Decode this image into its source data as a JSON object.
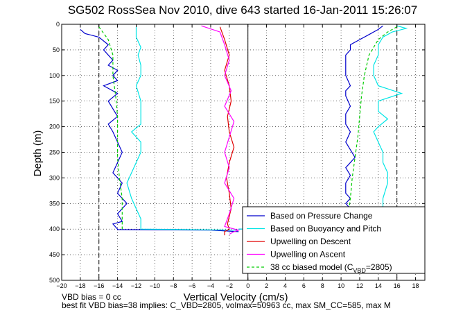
{
  "chart_data": {
    "type": "line",
    "title": "SG502 RossSea Nov 2010, dive 643 started 16-Jan-2011 15:26:07",
    "xlabel": "Vertical Velocity (cm/s)",
    "ylabel": "Depth (m)",
    "xlim": [
      -20,
      19
    ],
    "ylim": [
      0,
      500
    ],
    "y_reversed": true,
    "grid": true,
    "legend_position": "bottom-right",
    "xticks": [
      -20,
      -18,
      -16,
      -14,
      -12,
      -10,
      -8,
      -6,
      -4,
      -2,
      0,
      2,
      4,
      6,
      8,
      10,
      12,
      14,
      16,
      18
    ],
    "yticks": [
      0,
      50,
      100,
      150,
      200,
      250,
      300,
      350,
      400,
      450,
      500
    ],
    "reference_lines": {
      "solid_x": [
        0
      ],
      "dashed_x": [
        -16,
        16
      ],
      "colors": {
        "solid": "#000000",
        "dashed": "#000000"
      }
    },
    "series": [
      {
        "name": "Based on Pressure Change",
        "color": "#0000cc",
        "style": "solid",
        "segments": [
          {
            "x": [
              -18,
              -17.5,
              -16,
              -15,
              -15.5,
              -15,
              -14.5,
              -15,
              -14,
              -14.5,
              -14,
              -15.5,
              -14,
              -15,
              -14.5,
              -14,
              -15,
              -14.5,
              -14,
              -13.5,
              -14,
              -14.5,
              -13.5,
              -14,
              -13,
              -14,
              -13.5,
              -14.5,
              -14,
              -14,
              -4,
              -1
            ],
            "y": [
              10,
              18,
              25,
              40,
              50,
              60,
              70,
              80,
              90,
              100,
              110,
              120,
              135,
              150,
              165,
              180,
              195,
              210,
              230,
              250,
              270,
              290,
              310,
              330,
              350,
              370,
              385,
              390,
              400,
              401,
              402,
              405
            ]
          },
          {
            "x": [
              -1,
              10,
              10.5,
              11,
              10.5,
              11,
              10.5,
              10.5,
              11,
              10.5,
              11,
              11.5,
              11,
              10.5,
              11,
              10.5,
              10.5,
              11,
              10.5,
              10.5,
              11,
              10.5,
              10.5,
              10.5,
              11,
              11,
              12,
              13,
              14,
              14.5
            ],
            "y": [
              400,
              395,
              380,
              360,
              350,
              340,
              330,
              310,
              295,
              280,
              270,
              260,
              245,
              230,
              210,
              195,
              175,
              160,
              140,
              130,
              120,
              100,
              80,
              60,
              50,
              40,
              30,
              20,
              10,
              3
            ]
          }
        ]
      },
      {
        "name": "Based on Buoyancy and Pitch",
        "color": "#00e5e5",
        "style": "solid",
        "segments": [
          {
            "x": [
              -12,
              -12,
              -11.5,
              -11.8,
              -11.5,
              -11.5,
              -12,
              -11.5,
              -11.5,
              -11.5,
              -12.5,
              -11.5,
              -11.5,
              -12,
              -12.5,
              -13,
              -12.5,
              -12,
              -11.5,
              -11.5,
              -1
            ],
            "y": [
              5,
              25,
              45,
              60,
              80,
              100,
              120,
              150,
              170,
              195,
              210,
              230,
              250,
              270,
              290,
              310,
              340,
              360,
              380,
              400,
              402
            ]
          },
          {
            "x": [
              -1,
              14,
              14.5,
              14.5,
              15,
              15,
              14.5,
              14.5,
              14,
              13.5,
              14,
              15,
              14,
              14,
              16.5,
              14,
              13.5,
              13.5,
              14,
              14,
              14.5,
              15.5,
              17,
              16
            ],
            "y": [
              400,
              395,
              370,
              340,
              310,
              290,
              270,
              250,
              230,
              210,
              200,
              185,
              170,
              150,
              135,
              120,
              100,
              80,
              60,
              40,
              25,
              15,
              8,
              3
            ]
          }
        ]
      },
      {
        "name": "Upwelling on Descent",
        "color": "#e00000",
        "style": "solid",
        "x": [
          -3,
          -2.5,
          -2,
          -2.5,
          -2,
          -1.8,
          -2.2,
          -2,
          -1.5,
          -2,
          -2.3,
          -2,
          -1.8,
          -2.2,
          -2,
          -2.5,
          -2.5
        ],
        "y": [
          5,
          30,
          60,
          90,
          120,
          150,
          180,
          210,
          240,
          270,
          300,
          330,
          360,
          390,
          400,
          405,
          412
        ]
      },
      {
        "name": "Upwelling on Ascent",
        "color": "#ff00ff",
        "style": "solid",
        "x": [
          -5,
          -3,
          -2.5,
          -2,
          -2.5,
          -1.8,
          -2.5,
          -1.5,
          -2,
          -2.5,
          -2,
          -2.5,
          -1.5,
          -2,
          -2.5,
          -1,
          -1.5,
          -2
        ],
        "y": [
          3,
          15,
          40,
          70,
          100,
          130,
          160,
          190,
          220,
          250,
          280,
          310,
          340,
          370,
          395,
          402,
          405,
          410
        ]
      },
      {
        "name": "38 cc biased model (C_VBD=2805)",
        "color": "#00cc00",
        "style": "dashed",
        "segments": [
          {
            "x": [
              -16,
              -15,
              -14.5,
              -14.5,
              -14.2,
              -14,
              -14,
              -14,
              -13.8,
              -13.5,
              -13.5,
              -13.5,
              -13.5
            ],
            "y": [
              5,
              30,
              60,
              100,
              140,
              180,
              220,
              260,
              300,
              340,
              370,
              390,
              400
            ]
          },
          {
            "x": [
              10.5,
              10.8,
              11,
              11.2,
              11.5,
              11.8,
              12,
              12.2,
              12.5,
              13,
              14,
              15,
              16
            ],
            "y": [
              400,
              370,
              340,
              300,
              260,
              220,
              180,
              140,
              100,
              60,
              30,
              15,
              5
            ]
          }
        ]
      }
    ]
  },
  "legend": {
    "items": [
      {
        "label": "Based on Pressure Change",
        "color": "#0000cc",
        "style": "solid"
      },
      {
        "label": "Based on Buoyancy and Pitch",
        "color": "#00e5e5",
        "style": "solid"
      },
      {
        "label": "Upwelling on Descent",
        "color": "#e00000",
        "style": "solid"
      },
      {
        "label": "Upwelling on Ascent",
        "color": "#ff00ff",
        "style": "solid"
      },
      {
        "label_main": "38 cc biased model (C",
        "label_sub": "VBD",
        "label_tail": "=2805)",
        "color": "#00cc00",
        "style": "dashed"
      }
    ]
  },
  "footer": {
    "line1": "VBD bias = 0 cc",
    "line2": "best fit VBD bias=38 implies: C_VBD=2805, volmax=50963 cc, max SM_CC=585, max M"
  }
}
